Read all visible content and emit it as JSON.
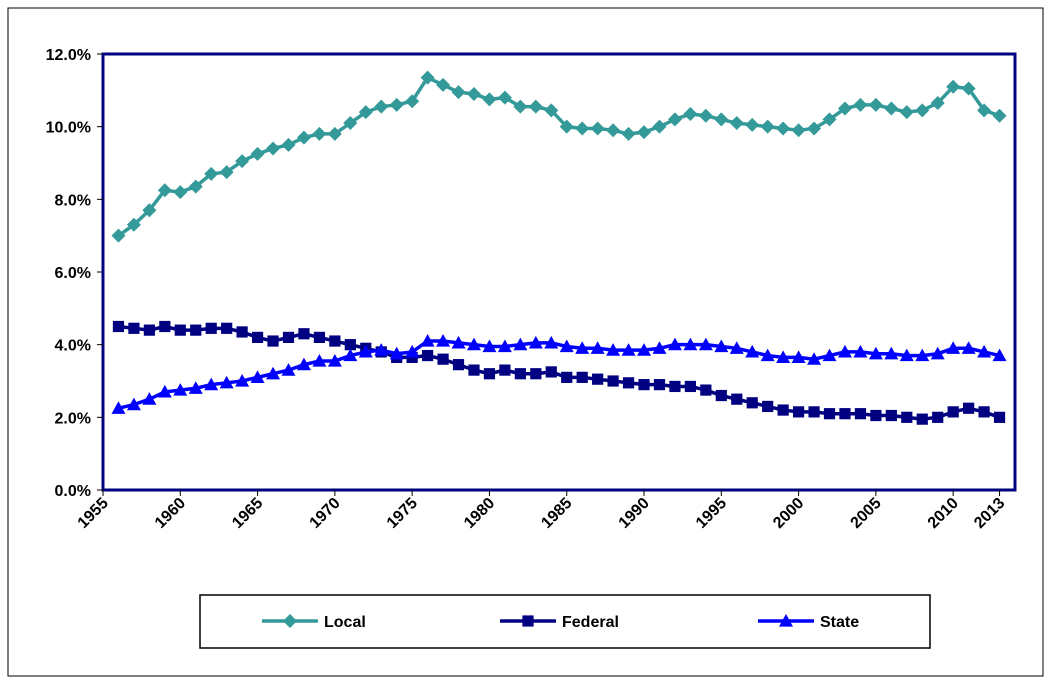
{
  "chart_data": {
    "type": "line",
    "x": [
      1956,
      1957,
      1958,
      1959,
      1960,
      1961,
      1962,
      1963,
      1964,
      1965,
      1966,
      1967,
      1968,
      1969,
      1970,
      1971,
      1972,
      1973,
      1974,
      1975,
      1976,
      1977,
      1978,
      1979,
      1980,
      1981,
      1982,
      1983,
      1984,
      1985,
      1986,
      1987,
      1988,
      1989,
      1990,
      1991,
      1992,
      1993,
      1994,
      1995,
      1996,
      1997,
      1998,
      1999,
      2000,
      2001,
      2002,
      2003,
      2004,
      2005,
      2006,
      2007,
      2008,
      2009,
      2010,
      2011,
      2012,
      2013
    ],
    "series": [
      {
        "name": "Local",
        "color": "#339999",
        "marker": "diamond",
        "values": [
          7.0,
          7.3,
          7.7,
          8.25,
          8.2,
          8.35,
          8.7,
          8.75,
          9.05,
          9.25,
          9.4,
          9.5,
          9.7,
          9.8,
          9.8,
          10.1,
          10.4,
          10.55,
          10.6,
          10.7,
          11.35,
          11.15,
          10.95,
          10.9,
          10.75,
          10.8,
          10.55,
          10.55,
          10.45,
          10.0,
          9.95,
          9.95,
          9.9,
          9.8,
          9.85,
          10.0,
          10.2,
          10.35,
          10.3,
          10.2,
          10.1,
          10.05,
          10.0,
          9.95,
          9.9,
          9.95,
          10.2,
          10.5,
          10.6,
          10.6,
          10.5,
          10.4,
          10.45,
          10.65,
          11.1,
          11.05,
          10.45,
          10.3
        ]
      },
      {
        "name": "Federal",
        "color": "#000080",
        "marker": "square",
        "values": [
          4.5,
          4.45,
          4.4,
          4.5,
          4.4,
          4.4,
          4.45,
          4.45,
          4.35,
          4.2,
          4.1,
          4.2,
          4.3,
          4.2,
          4.1,
          4.0,
          3.9,
          3.8,
          3.65,
          3.65,
          3.7,
          3.6,
          3.45,
          3.3,
          3.2,
          3.3,
          3.2,
          3.2,
          3.25,
          3.1,
          3.1,
          3.05,
          3.0,
          2.95,
          2.9,
          2.9,
          2.85,
          2.85,
          2.75,
          2.6,
          2.5,
          2.4,
          2.3,
          2.2,
          2.15,
          2.15,
          2.1,
          2.1,
          2.1,
          2.05,
          2.05,
          2.0,
          1.95,
          2.0,
          2.15,
          2.25,
          2.15,
          2.0
        ]
      },
      {
        "name": "State",
        "color": "#0000ff",
        "marker": "triangle",
        "values": [
          2.25,
          2.35,
          2.5,
          2.7,
          2.75,
          2.8,
          2.9,
          2.95,
          3.0,
          3.1,
          3.2,
          3.3,
          3.45,
          3.55,
          3.55,
          3.7,
          3.8,
          3.85,
          3.75,
          3.8,
          4.1,
          4.1,
          4.05,
          4.0,
          3.95,
          3.95,
          4.0,
          4.05,
          4.05,
          3.95,
          3.9,
          3.9,
          3.85,
          3.85,
          3.85,
          3.9,
          4.0,
          4.0,
          4.0,
          3.95,
          3.9,
          3.8,
          3.7,
          3.65,
          3.65,
          3.6,
          3.7,
          3.8,
          3.8,
          3.75,
          3.75,
          3.7,
          3.7,
          3.75,
          3.9,
          3.9,
          3.8,
          3.7
        ]
      }
    ],
    "xlim": [
      1955,
      2014
    ],
    "xticks": [
      1955,
      1960,
      1965,
      1970,
      1975,
      1980,
      1985,
      1990,
      1995,
      2000,
      2005,
      2010,
      2013
    ],
    "ylim": [
      0,
      12
    ],
    "yticks": [
      {
        "value": 0,
        "label": "0.0%"
      },
      {
        "value": 2,
        "label": "2.0%"
      },
      {
        "value": 4,
        "label": "4.0%"
      },
      {
        "value": 6,
        "label": "6.0%"
      },
      {
        "value": 8,
        "label": "8.0%"
      },
      {
        "value": 10,
        "label": "10.0%"
      },
      {
        "value": 12,
        "label": "12.0%"
      }
    ],
    "grid": false,
    "legend": "bottom"
  }
}
